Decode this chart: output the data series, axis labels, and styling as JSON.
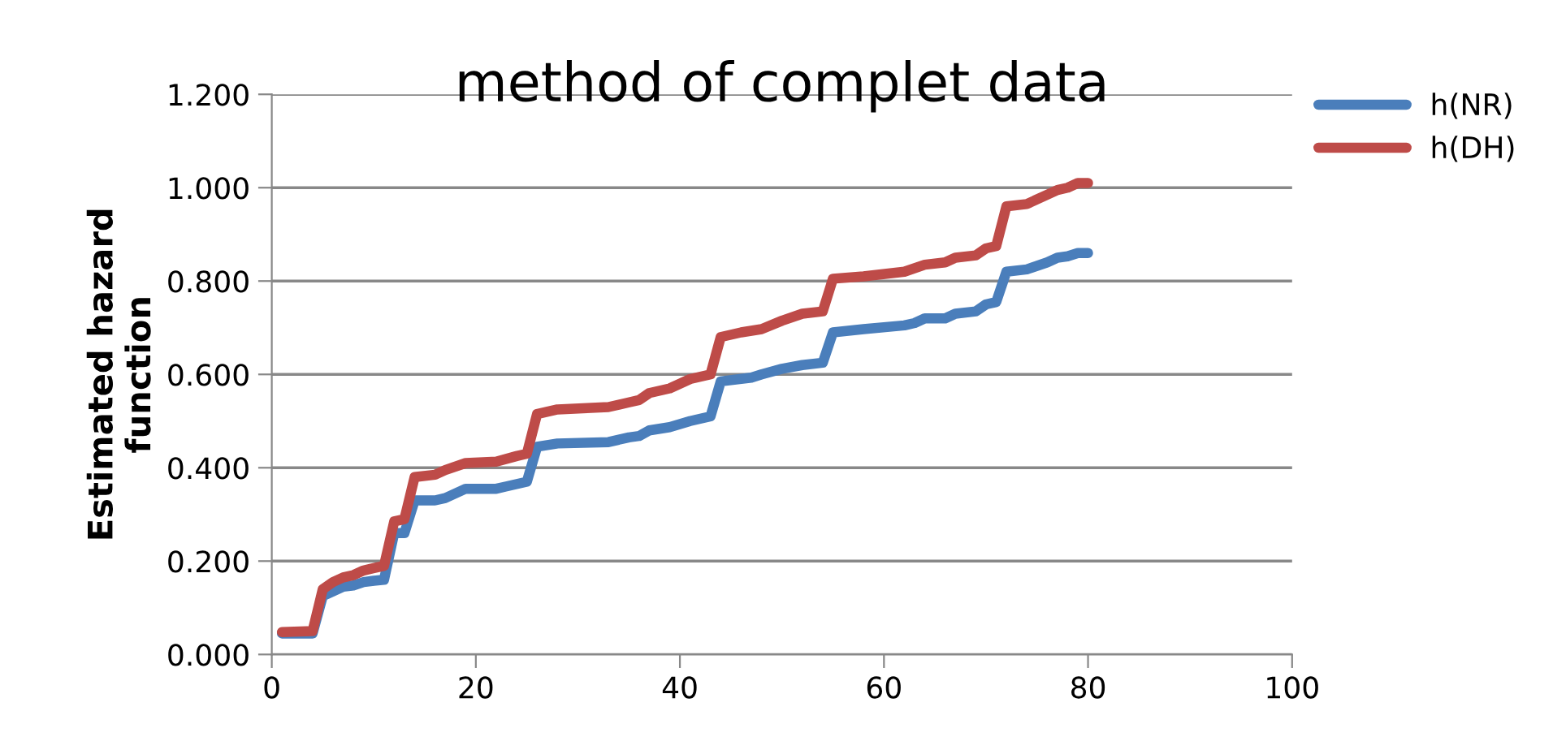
{
  "chart_data": {
    "type": "line",
    "title": "method of complet data",
    "ylabel": "Estimated hazard\nfunction",
    "xlim": [
      0,
      100
    ],
    "xticks": [
      0,
      20,
      40,
      60,
      80,
      100
    ],
    "ylim": [
      0,
      1.2
    ],
    "yticks": [
      {
        "value": 0,
        "label": "0.000"
      },
      {
        "value": 0.2,
        "label": "0.200"
      },
      {
        "value": 0.4,
        "label": "0.400"
      },
      {
        "value": 0.6,
        "label": "0.600"
      },
      {
        "value": 0.8,
        "label": "0.800"
      },
      {
        "value": 1.0,
        "label": "1.000"
      },
      {
        "value": 1.2,
        "label": "1.200"
      }
    ],
    "grid": "y",
    "legend": "top right",
    "marker": "none",
    "line_style": "solid",
    "series": [
      {
        "name": "h(NR)",
        "color": "#4a7ebb",
        "x": [
          1,
          4,
          5,
          6,
          7,
          8,
          9,
          10,
          11,
          12,
          13,
          14,
          16,
          17,
          19,
          22,
          23,
          25,
          26,
          28,
          33,
          35,
          36,
          37,
          39,
          41,
          43,
          44,
          47,
          48,
          50,
          52,
          54,
          55,
          58,
          62,
          63,
          64,
          66,
          67,
          69,
          70,
          71,
          72,
          74,
          76,
          77,
          78,
          79,
          80
        ],
        "values": [
          0.045,
          0.045,
          0.125,
          0.135,
          0.145,
          0.148,
          0.155,
          0.158,
          0.16,
          0.26,
          0.26,
          0.33,
          0.33,
          0.335,
          0.355,
          0.355,
          0.36,
          0.37,
          0.445,
          0.452,
          0.455,
          0.465,
          0.468,
          0.48,
          0.487,
          0.5,
          0.51,
          0.585,
          0.593,
          0.6,
          0.612,
          0.62,
          0.625,
          0.69,
          0.697,
          0.705,
          0.71,
          0.72,
          0.72,
          0.73,
          0.735,
          0.75,
          0.755,
          0.82,
          0.825,
          0.84,
          0.85,
          0.853,
          0.86,
          0.86
        ]
      },
      {
        "name": "h(DH)",
        "color": "#be4b48",
        "x": [
          1,
          4,
          5,
          6,
          7,
          8,
          9,
          10,
          11,
          12,
          13,
          14,
          16,
          17,
          19,
          22,
          24,
          25,
          26,
          28,
          33,
          35,
          36,
          37,
          39,
          41,
          43,
          44,
          46,
          48,
          50,
          52,
          54,
          55,
          58,
          62,
          64,
          66,
          67,
          69,
          70,
          71,
          72,
          74,
          76,
          77,
          78,
          79,
          80
        ],
        "values": [
          0.048,
          0.05,
          0.14,
          0.155,
          0.165,
          0.17,
          0.18,
          0.185,
          0.19,
          0.285,
          0.29,
          0.38,
          0.385,
          0.395,
          0.41,
          0.413,
          0.425,
          0.43,
          0.515,
          0.525,
          0.53,
          0.54,
          0.545,
          0.56,
          0.57,
          0.59,
          0.6,
          0.68,
          0.69,
          0.697,
          0.715,
          0.73,
          0.735,
          0.805,
          0.81,
          0.82,
          0.835,
          0.84,
          0.85,
          0.855,
          0.87,
          0.875,
          0.96,
          0.965,
          0.985,
          0.995,
          1.0,
          1.01,
          1.01
        ]
      }
    ]
  }
}
